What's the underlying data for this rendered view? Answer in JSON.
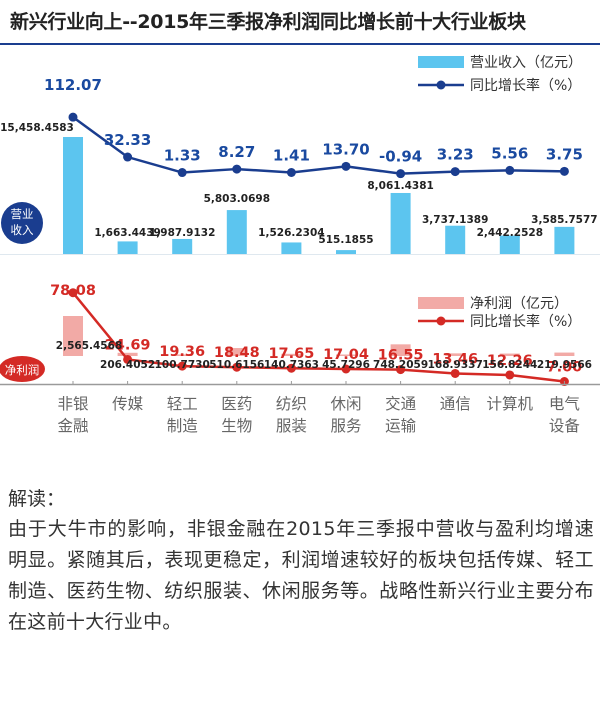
{
  "title": "新兴行业向上--2015年三季报净利润同比增长前十大行业板块",
  "colors": {
    "bar_top": "#5cc5ef",
    "line_top": "#1a3d8f",
    "bar_bottom": "#f2aaa6",
    "line_bottom": "#d42a25",
    "label_top": "#1a4aa0",
    "label_bottom": "#d42a25"
  },
  "chart_data": [
    {
      "type": "bar",
      "section_label": "营业收入",
      "categories": [
        "非银金融",
        "传媒",
        "轻工制造",
        "医药生物",
        "纺织服装",
        "休闲服务",
        "交通运输",
        "通信",
        "计算机",
        "电气设备"
      ],
      "series": [
        {
          "name": "营业收入（亿元）",
          "kind": "bar",
          "values": [
            15458.4583,
            1663.4439,
            1987.9132,
            5803.0698,
            1526.2304,
            515.1855,
            8061.4381,
            3737.1389,
            2442.2528,
            3585.7577
          ],
          "labels": [
            "15,458.4583",
            "1,663.4439",
            "1,987.9132",
            "5,803.0698",
            "1,526.2304",
            "515.1855",
            "8,061.4381",
            "3,737.1389",
            "2,442.2528",
            "3,585.7577"
          ]
        },
        {
          "name": "同比增长率（%）",
          "kind": "line",
          "values": [
            112.07,
            32.33,
            1.33,
            8.27,
            1.41,
            13.7,
            -0.94,
            3.23,
            5.56,
            3.75
          ],
          "labels": [
            "112.07",
            "32.33",
            "1.33",
            "8.27",
            "1.41",
            "13.70",
            "-0.94",
            "3.23",
            "5.56",
            "3.75"
          ]
        }
      ]
    },
    {
      "type": "bar",
      "section_label": "净利润",
      "categories": [
        "非银金融",
        "传媒",
        "轻工制造",
        "医药生物",
        "纺织服装",
        "休闲服务",
        "交通运输",
        "通信",
        "计算机",
        "电气设备"
      ],
      "series": [
        {
          "name": "净利润（亿元）",
          "kind": "bar",
          "values": [
            2565.4568,
            206.4052,
            100.773,
            510.6156,
            140.7363,
            45.7296,
            748.2059,
            168.9337,
            156.8244,
            219.9566
          ],
          "labels": [
            "2,565.4568",
            "206.4052",
            "100.7730",
            "510.6156",
            "140.7363",
            "45.7296",
            "748.2059",
            "168.9337",
            "156.8244",
            "219.9566"
          ]
        },
        {
          "name": "同比增长率（%）",
          "kind": "line",
          "values": [
            78.08,
            24.69,
            19.36,
            18.48,
            17.65,
            17.04,
            16.55,
            13.46,
            12.26,
            7.0
          ],
          "labels": [
            "78.08",
            "24.69",
            "19.36",
            "18.48",
            "17.65",
            "17.04",
            "16.55",
            "13.46",
            "12.26",
            "7.00"
          ]
        }
      ]
    }
  ],
  "category_lines": [
    [
      "非银",
      "金融"
    ],
    [
      "传媒"
    ],
    [
      "轻工",
      "制造"
    ],
    [
      "医药",
      "生物"
    ],
    [
      "纺织",
      "服装"
    ],
    [
      "休闲",
      "服务"
    ],
    [
      "交通",
      "运输"
    ],
    [
      "通信"
    ],
    [
      "计算机"
    ],
    [
      "电气",
      "设备"
    ]
  ],
  "notes": {
    "heading": "解读：",
    "body": "由于大牛市的影响，非银金融在2015年三季报中营收与盈利均增速明显。紧随其后，表现更稳定，利润增速较好的板块包括传媒、轻工制造、医药生物、纺织服装、休闲服务等。战略性新兴行业主要分布在这前十大行业中。"
  }
}
